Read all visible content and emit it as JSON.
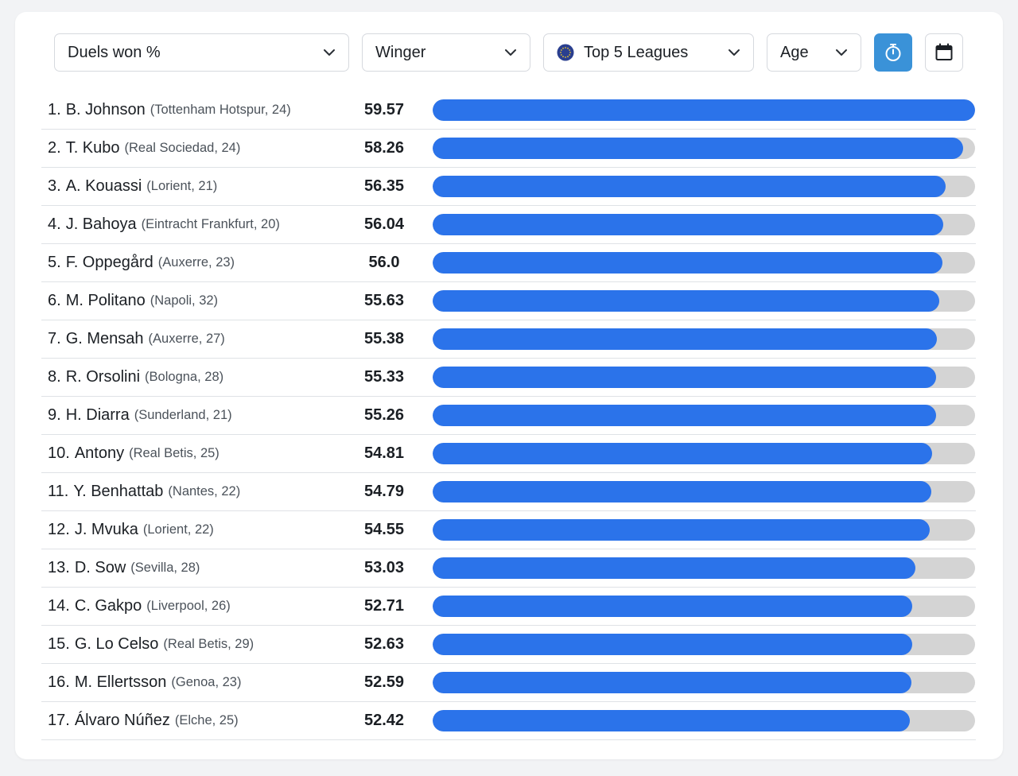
{
  "filters": {
    "metric": "Duels won %",
    "position": "Winger",
    "league": "Top 5 Leagues",
    "sort": "Age"
  },
  "icons": {
    "league_flag": "eu-flag-icon",
    "timer": "stopwatch-icon",
    "calendar": "calendar-icon",
    "chevron": "chevron-down-icon"
  },
  "colors": {
    "bar_fill": "#2b73ea",
    "bar_track": "#d4d4d4",
    "active_button": "#3a92d8"
  },
  "chart_data": {
    "type": "bar",
    "orientation": "horizontal",
    "max": 59.57,
    "rows": [
      {
        "rank": "1.",
        "player": "B. Johnson",
        "meta": "(Tottenham Hotspur, 24)",
        "value": 59.57,
        "label": "59.57"
      },
      {
        "rank": "2.",
        "player": "T. Kubo",
        "meta": "(Real Sociedad, 24)",
        "value": 58.26,
        "label": "58.26"
      },
      {
        "rank": "3.",
        "player": "A. Kouassi",
        "meta": "(Lorient, 21)",
        "value": 56.35,
        "label": "56.35"
      },
      {
        "rank": "4.",
        "player": "J. Bahoya",
        "meta": "(Eintracht Frankfurt, 20)",
        "value": 56.04,
        "label": "56.04"
      },
      {
        "rank": "5.",
        "player": "F. Oppegård",
        "meta": "(Auxerre, 23)",
        "value": 56.0,
        "label": "56.0"
      },
      {
        "rank": "6.",
        "player": "M. Politano",
        "meta": "(Napoli, 32)",
        "value": 55.63,
        "label": "55.63"
      },
      {
        "rank": "7.",
        "player": "G. Mensah",
        "meta": "(Auxerre, 27)",
        "value": 55.38,
        "label": "55.38"
      },
      {
        "rank": "8.",
        "player": "R. Orsolini",
        "meta": "(Bologna, 28)",
        "value": 55.33,
        "label": "55.33"
      },
      {
        "rank": "9.",
        "player": "H. Diarra",
        "meta": "(Sunderland, 21)",
        "value": 55.26,
        "label": "55.26"
      },
      {
        "rank": "10.",
        "player": "Antony",
        "meta": "(Real Betis, 25)",
        "value": 54.81,
        "label": "54.81"
      },
      {
        "rank": "11.",
        "player": "Y. Benhattab",
        "meta": "(Nantes, 22)",
        "value": 54.79,
        "label": "54.79"
      },
      {
        "rank": "12.",
        "player": "J. Mvuka",
        "meta": "(Lorient, 22)",
        "value": 54.55,
        "label": "54.55"
      },
      {
        "rank": "13.",
        "player": "D. Sow",
        "meta": "(Sevilla, 28)",
        "value": 53.03,
        "label": "53.03"
      },
      {
        "rank": "14.",
        "player": "C. Gakpo",
        "meta": "(Liverpool, 26)",
        "value": 52.71,
        "label": "52.71"
      },
      {
        "rank": "15.",
        "player": "G. Lo Celso",
        "meta": "(Real Betis, 29)",
        "value": 52.63,
        "label": "52.63"
      },
      {
        "rank": "16.",
        "player": "M. Ellertsson",
        "meta": "(Genoa, 23)",
        "value": 52.59,
        "label": "52.59"
      },
      {
        "rank": "17.",
        "player": "Álvaro Núñez",
        "meta": "(Elche, 25)",
        "value": 52.42,
        "label": "52.42"
      }
    ]
  }
}
